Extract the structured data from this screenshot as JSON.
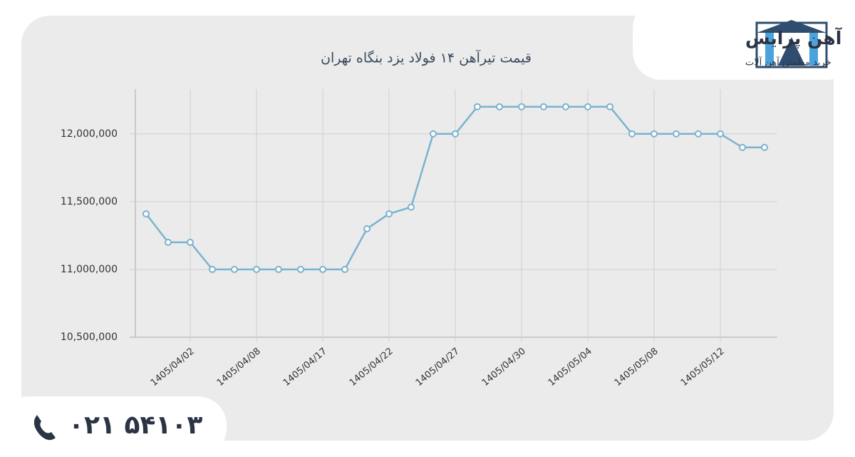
{
  "brand": {
    "name": "آهن پرایس",
    "tagline": "خرید مطمئن آهن آلات",
    "phone": "۰۲۱ ۵۴۱۰۳"
  },
  "chart_data": {
    "type": "line",
    "title": "قیمت تیرآهن ۱۴ فولاد یزد بنگاه تهران",
    "categories": [
      null,
      null,
      "1405/04/02",
      null,
      null,
      "1405/04/08",
      null,
      null,
      "1405/04/17",
      null,
      null,
      "1405/04/22",
      null,
      null,
      "1405/04/27",
      null,
      null,
      "1405/04/30",
      null,
      null,
      "1405/05/04",
      null,
      null,
      "1405/05/08",
      null,
      null,
      "1405/05/12",
      null,
      null
    ],
    "series": [
      {
        "name": "قیمت",
        "color": "#7ab3cf",
        "values": [
          11410000,
          11200000,
          11200000,
          11000000,
          11000000,
          11000000,
          11000000,
          11000000,
          11000000,
          11000000,
          11300000,
          11410000,
          11460000,
          12000000,
          12000000,
          12200000,
          12200000,
          12200000,
          12200000,
          12200000,
          12200000,
          12200000,
          12000000,
          12000000,
          12000000,
          12000000,
          12000000,
          11900000,
          11900000
        ]
      }
    ],
    "ylim": [
      10500000,
      12330000
    ],
    "yticks": [
      {
        "value": 10500000,
        "label": "10,500,000"
      },
      {
        "value": 11000000,
        "label": "11,000,000"
      },
      {
        "value": 11500000,
        "label": "11,500,000"
      },
      {
        "value": 12000000,
        "label": "12,000,000"
      }
    ],
    "grid": true
  }
}
